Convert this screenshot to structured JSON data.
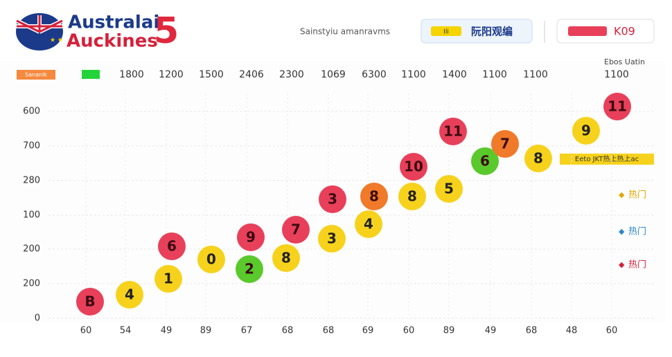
{
  "header": {
    "brand_line1": "Australai",
    "brand_line2": "Auckines",
    "brand_number": "5",
    "subtitle": "Sainstyiu amanravms",
    "button1": "阮阳观编",
    "button1_tag": "Ili",
    "button2": "K09",
    "corner": "Ebos Uatin"
  },
  "top_row": {
    "tag": "Sananlk",
    "values": [
      "1800",
      "1200",
      "1500",
      "2406",
      "2300",
      "1069",
      "6300",
      "1100",
      "1400",
      "1100",
      "1100",
      "1100"
    ]
  },
  "y_labels": [
    "600",
    "700",
    "280",
    "100",
    "200",
    "200",
    "0"
  ],
  "x_labels": [
    "60",
    "54",
    "49",
    "89",
    "67",
    "68",
    "68",
    "69",
    "60",
    "89",
    "49",
    "68",
    "48",
    "60"
  ],
  "balls": [
    "B",
    "4",
    "1",
    "6",
    "0",
    "2",
    "9",
    "8",
    "7",
    "3",
    "3",
    "4",
    "8",
    "8",
    "10",
    "5",
    "11",
    "6",
    "7",
    "8",
    "9",
    "11"
  ],
  "side": {
    "banner": "Eeto JKT热上热上ac",
    "legend": [
      "热门",
      "热门",
      "热门"
    ]
  }
}
